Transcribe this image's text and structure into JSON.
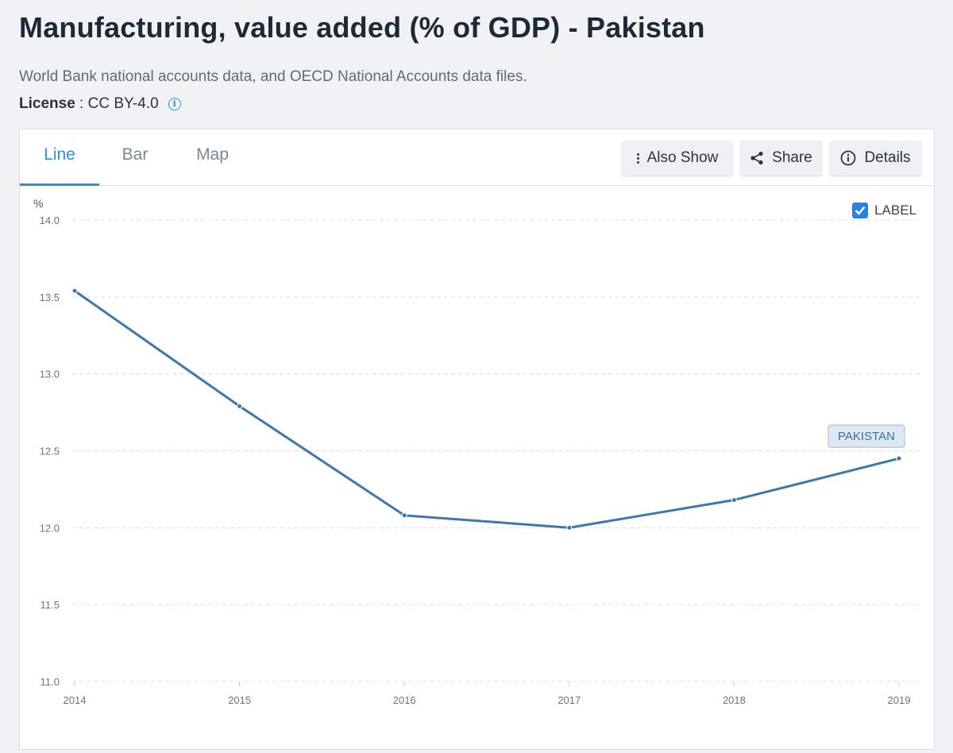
{
  "header": {
    "title": "Manufacturing, value added (% of GDP) - Pakistan",
    "source": "World Bank national accounts data, and OECD National Accounts data files.",
    "license_label": "License",
    "license_sep": " : ",
    "license_value": "CC BY-4.0",
    "info_glyph": "i"
  },
  "tabs": [
    {
      "label": "Line",
      "active": true
    },
    {
      "label": "Bar",
      "active": false
    },
    {
      "label": "Map",
      "active": false
    }
  ],
  "toolbar": {
    "also_show": "Also Show",
    "share": "Share",
    "details": "Details"
  },
  "label_toggle": {
    "text": "LABEL",
    "checked": true
  },
  "colors": {
    "accent": "#2f8ed8",
    "line": "#3f77ad",
    "grid": "#d9dde2"
  },
  "chart_data": {
    "type": "line",
    "title": "Manufacturing, value added (% of GDP) - Pakistan",
    "xlabel": "",
    "ylabel": "%",
    "x": [
      "2014",
      "2015",
      "2016",
      "2017",
      "2018",
      "2019"
    ],
    "series": [
      {
        "name": "PAKISTAN",
        "values": [
          13.54,
          12.79,
          12.08,
          12.0,
          12.18,
          12.45
        ]
      }
    ],
    "ylim": [
      11.0,
      14.0
    ],
    "yticks": [
      "11.0",
      "11.5",
      "12.0",
      "12.5",
      "13.0",
      "13.5",
      "14.0"
    ],
    "grid": true,
    "series_label": "PAKISTAN"
  }
}
